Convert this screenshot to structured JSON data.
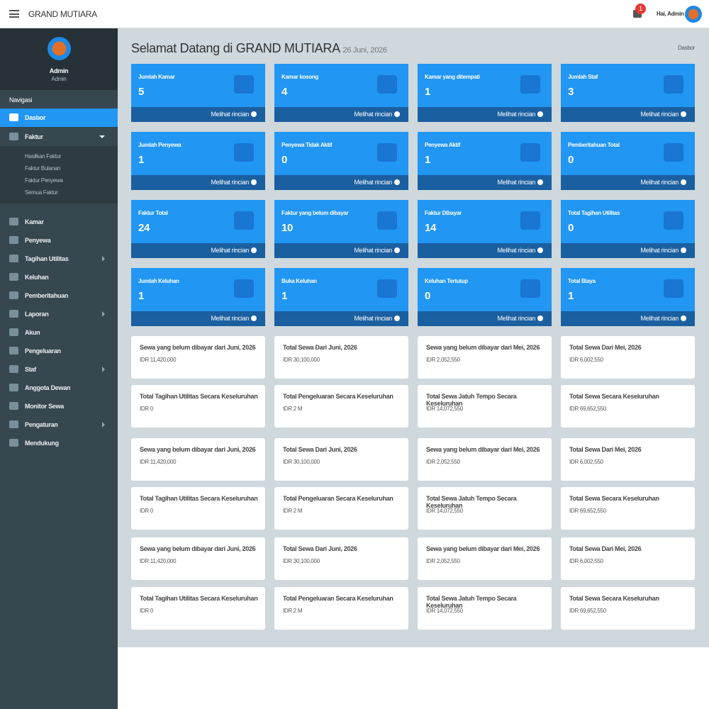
{
  "header": {
    "brand": "GRAND MUTIARA",
    "notification_count": "1",
    "greeting": "Hai, Admin"
  },
  "sidebar": {
    "user_name": "Admin",
    "user_role": "Admin",
    "nav_title": "Navigasi",
    "items": [
      {
        "label": "Dasbor",
        "active": true
      },
      {
        "label": "Faktur",
        "collapsible": true,
        "children": [
          "Hasilkan Faktur",
          "Faktur Bulanan",
          "Faktur Penyewa",
          "Semua Faktur"
        ]
      },
      {
        "label": "Kamar"
      },
      {
        "label": "Penyewa"
      },
      {
        "label": "Tagihan Utilitas",
        "collapsible": true
      },
      {
        "label": "Keluhan"
      },
      {
        "label": "Pemberitahuan"
      },
      {
        "label": "Laporan",
        "collapsible": true
      },
      {
        "label": "Akun"
      },
      {
        "label": "Pengeluaran"
      },
      {
        "label": "Staf",
        "collapsible": true
      },
      {
        "label": "Anggota Dewan"
      },
      {
        "label": "Monitor Sewa"
      },
      {
        "label": "Pengaturan",
        "collapsible": true
      },
      {
        "label": "Mendukung"
      }
    ]
  },
  "page": {
    "title": "Selamat Datang di GRAND MUTIARA",
    "date": "26 Juni, 2026",
    "breadcrumb": "Dasbor",
    "stat_link": "Melihat rincian"
  },
  "stat_cards": [
    {
      "label": "Jumlah Kamar",
      "value": "5"
    },
    {
      "label": "Kamar kosong",
      "value": "4"
    },
    {
      "label": "Kamar yang ditempati",
      "value": "1"
    },
    {
      "label": "Jumlah Staf",
      "value": "3"
    },
    {
      "label": "Jumlah Penyewa",
      "value": "1"
    },
    {
      "label": "Penyewa Tidak Aktif",
      "value": "0"
    },
    {
      "label": "Penyewa Aktif",
      "value": "1"
    },
    {
      "label": "Pemberitahuan Total",
      "value": "0"
    },
    {
      "label": "Faktur Total",
      "value": "24"
    },
    {
      "label": "Faktur yang belum dibayar",
      "value": "10"
    },
    {
      "label": "Faktur Dibayar",
      "value": "14"
    },
    {
      "label": "Total Tagihan Utilitas",
      "value": "0"
    },
    {
      "label": "Jumlah Keluhan",
      "value": "1"
    },
    {
      "label": "Buka Keluhan",
      "value": "1"
    },
    {
      "label": "Keluhan Tertutup",
      "value": "0"
    },
    {
      "label": "Total Biaya",
      "value": "1"
    }
  ],
  "summary_cards": [
    {
      "title": "Sewa yang belum dibayar dari Juni, 2026",
      "value": "IDR 11,420,000"
    },
    {
      "title": "Total Sewa Dari Juni, 2026",
      "value": "IDR 30,100,000"
    },
    {
      "title": "Sewa yang belum dibayar dari Mei, 2026",
      "value": "IDR 2,052,550"
    },
    {
      "title": "Total Sewa Dari Mei, 2026",
      "value": "IDR 6,002,550"
    },
    {
      "title": "Total Tagihan Utilitas Secara Keseluruhan",
      "value": "IDR 0"
    },
    {
      "title": "Total Pengeluaran Secara Keseluruhan",
      "value": "IDR 2 M"
    },
    {
      "title": "Total Sewa Jatuh Tempo Secara Keseluruhan",
      "value": "IDR 14,072,550"
    },
    {
      "title": "Total Sewa Secara Keseluruhan",
      "value": "IDR 69,652,550"
    },
    {
      "title": "Sewa yang belum dibayar dari Juni, 2026",
      "value": "IDR 11,420,000"
    },
    {
      "title": "Total Sewa Dari Juni, 2026",
      "value": "IDR 30,100,000"
    },
    {
      "title": "Sewa yang belum dibayar dari Mei, 2026",
      "value": "IDR 2,052,550"
    },
    {
      "title": "Total Sewa Dari Mei, 2026",
      "value": "IDR 6,002,550"
    },
    {
      "title": "Total Tagihan Utilitas Secara Keseluruhan",
      "value": "IDR 0"
    },
    {
      "title": "Total Pengeluaran Secara Keseluruhan",
      "value": "IDR 2 M"
    },
    {
      "title": "Total Sewa Jatuh Tempo Secara Keseluruhan",
      "value": "IDR 14,072,550"
    },
    {
      "title": "Total Sewa Secara Keseluruhan",
      "value": "IDR 69,652,550"
    },
    {
      "title": "Sewa yang belum dibayar dari Juni, 2026",
      "value": "IDR 11,420,000"
    },
    {
      "title": "Total Sewa Dari Juni, 2026",
      "value": "IDR 30,100,000"
    },
    {
      "title": "Sewa yang belum dibayar dari Mei, 2026",
      "value": "IDR 2,052,550"
    },
    {
      "title": "Total Sewa Dari Mei, 2026",
      "value": "IDR 6,002,550"
    },
    {
      "title": "Total Tagihan Utilitas Secara Keseluruhan",
      "value": "IDR 0"
    },
    {
      "title": "Total Pengeluaran Secara Keseluruhan",
      "value": "IDR 2 M"
    },
    {
      "title": "Total Sewa Jatuh Tempo Secara Keseluruhan",
      "value": "IDR 14,072,550"
    },
    {
      "title": "Total Sewa Secara Keseluruhan",
      "value": "IDR 69,652,550"
    }
  ]
}
